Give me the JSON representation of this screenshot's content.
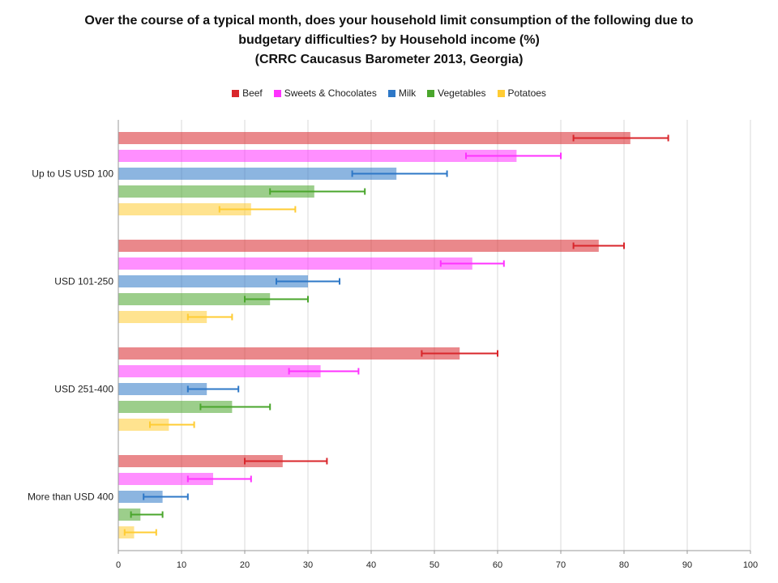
{
  "chart_data": {
    "type": "bar",
    "orientation": "horizontal",
    "title_lines": [
      "Over the course of a typical month, does your household limit consumption of the following due to",
      "budgetary difficulties?   by Household income (%)",
      "(CRRC Caucasus Barometer 2013, Georgia)"
    ],
    "categories": [
      "Up to US USD 100",
      "USD 101-250",
      "USD 251-400",
      "More than USD 400"
    ],
    "series": [
      {
        "name": "Beef",
        "color": "#d9262b",
        "values": [
          81,
          76,
          54,
          26
        ],
        "err_low": [
          72,
          72,
          48,
          20
        ],
        "err_high": [
          87,
          80,
          60,
          33
        ]
      },
      {
        "name": "Sweets & Chocolates",
        "color": "#ff33ff",
        "values": [
          63,
          56,
          32,
          15
        ],
        "err_low": [
          55,
          51,
          27,
          11
        ],
        "err_high": [
          70,
          61,
          38,
          21
        ]
      },
      {
        "name": "Milk",
        "color": "#2e78c7",
        "values": [
          44,
          30,
          14,
          7
        ],
        "err_low": [
          37,
          25,
          11,
          4
        ],
        "err_high": [
          52,
          35,
          19,
          11
        ]
      },
      {
        "name": "Vegetables",
        "color": "#4aa62c",
        "values": [
          31,
          24,
          18,
          3.5
        ],
        "err_low": [
          24,
          20,
          13,
          2
        ],
        "err_high": [
          39,
          30,
          24,
          7
        ]
      },
      {
        "name": "Potatoes",
        "color": "#ffcc33",
        "values": [
          21,
          14,
          8,
          2.5
        ],
        "err_low": [
          16,
          11,
          5,
          1
        ],
        "err_high": [
          28,
          18,
          12,
          6
        ]
      }
    ],
    "xlim": [
      0,
      100
    ],
    "xticks": [
      0,
      10,
      20,
      30,
      40,
      50,
      60,
      70,
      80,
      90,
      100
    ],
    "grid": true,
    "legend_position": "top"
  }
}
